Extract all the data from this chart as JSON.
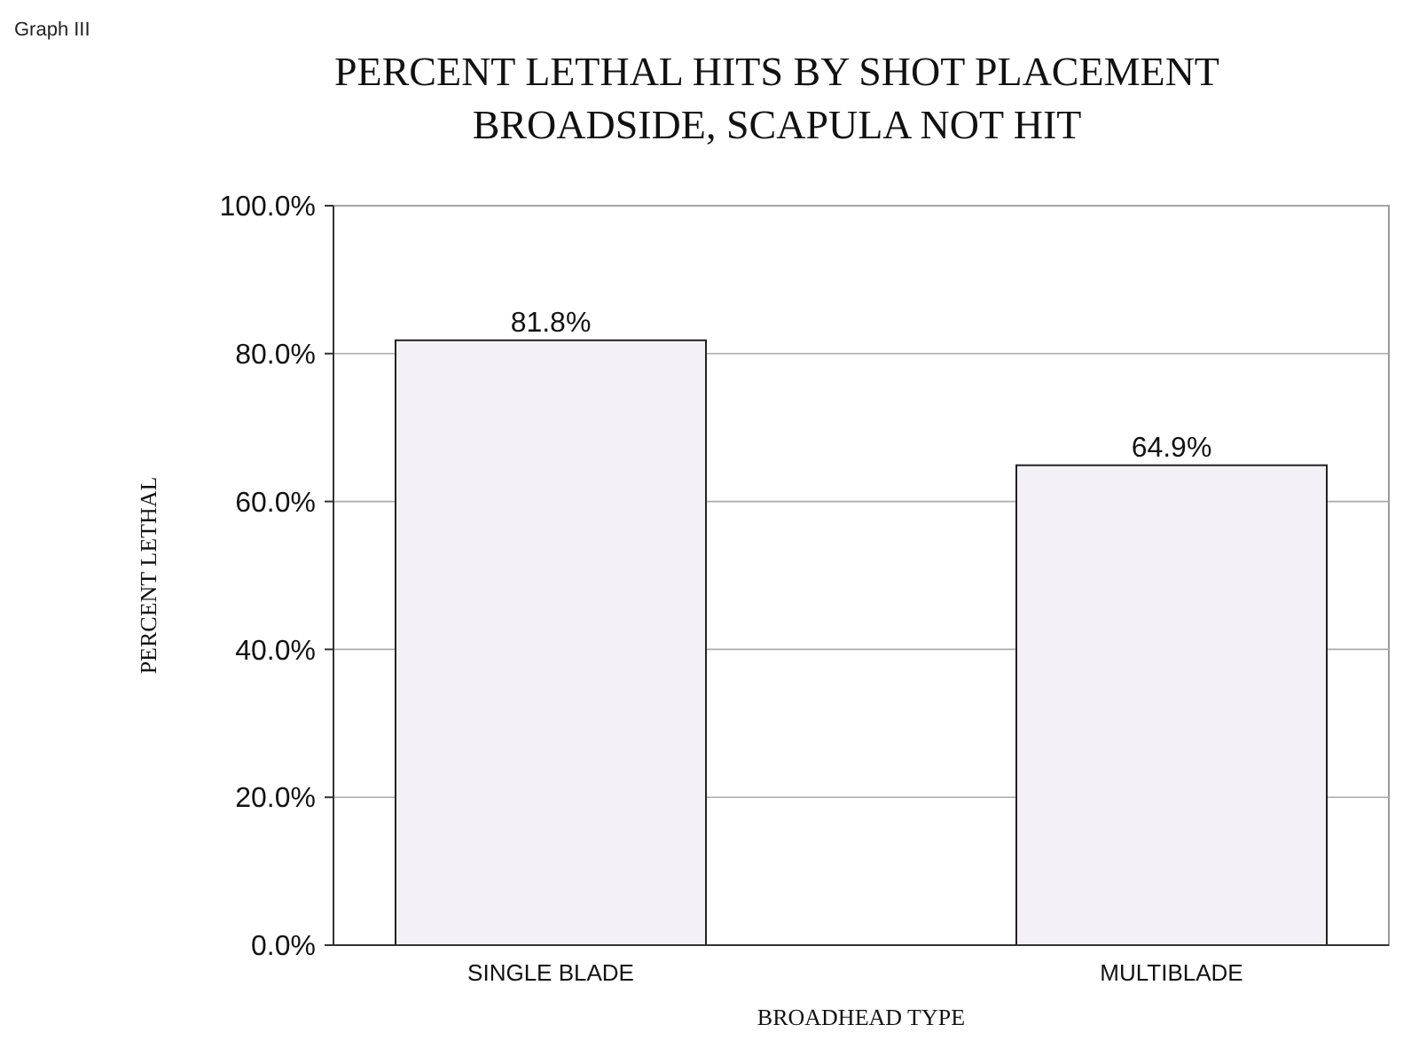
{
  "chart_data": {
    "type": "bar",
    "title": "PERCENT LETHAL HITS BY SHOT PLACEMENT",
    "subtitle": "BROADSIDE, SCAPULA NOT HIT",
    "xlabel": "BROADHEAD TYPE",
    "ylabel": "PERCENT LETHAL",
    "annotations": [
      "Graph III"
    ],
    "categories": [
      "SINGLE BLADE",
      "MULTIBLADE"
    ],
    "values": [
      81.8,
      64.9
    ],
    "value_labels": [
      "81.8%",
      "64.9%"
    ],
    "color": "#f3f1f5",
    "ylim": [
      0,
      100
    ],
    "yticks": [
      {
        "value": 0,
        "label": "0.0%"
      },
      {
        "value": 20,
        "label": "20.0%"
      },
      {
        "value": 40,
        "label": "40.0%"
      },
      {
        "value": 60,
        "label": "60.0%"
      },
      {
        "value": 80,
        "label": "80.0%"
      },
      {
        "value": 100,
        "label": "100.0%"
      }
    ],
    "grid": "y"
  }
}
